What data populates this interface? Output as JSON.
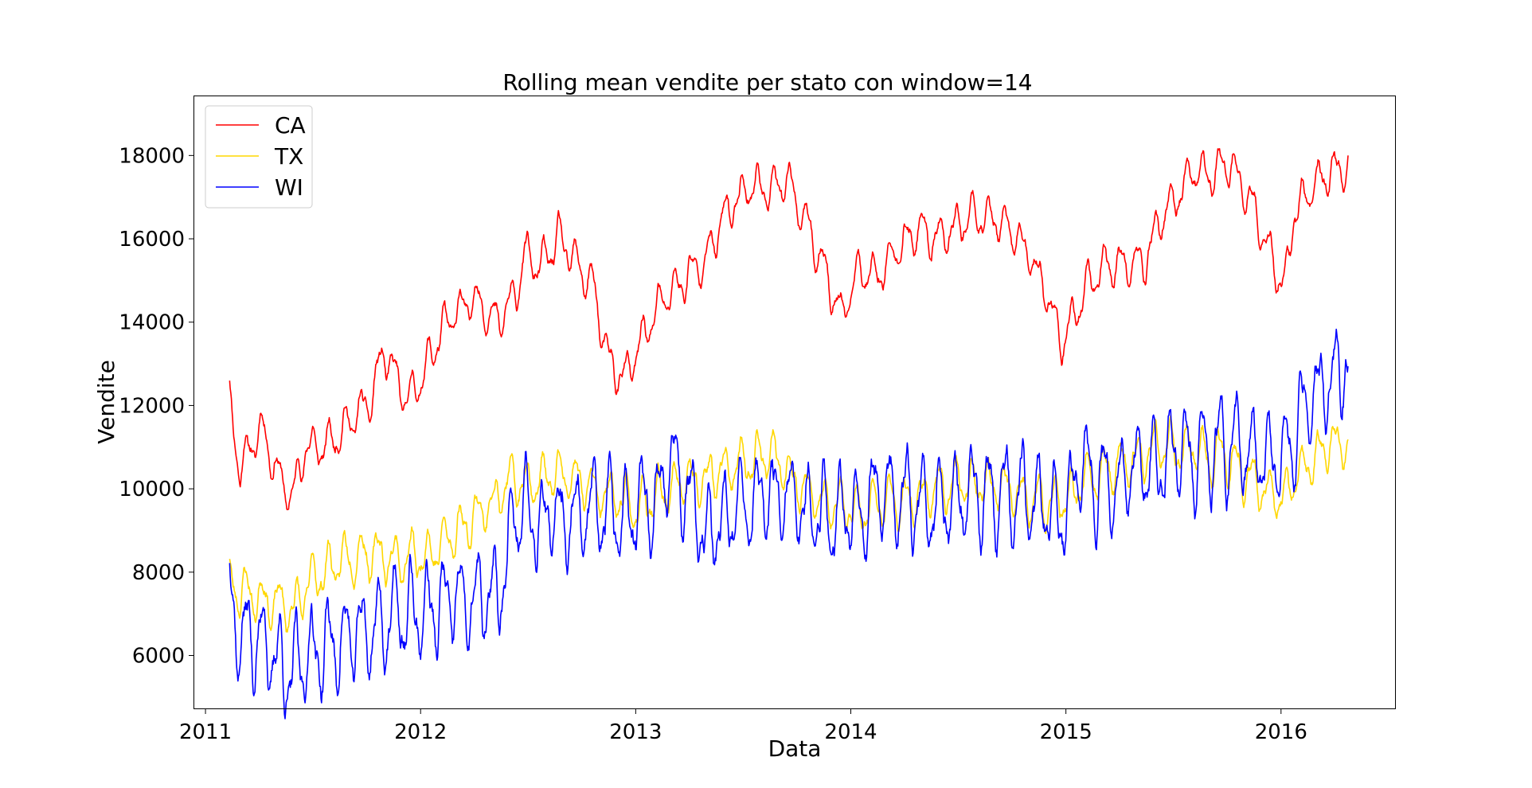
{
  "chart_data": {
    "type": "line",
    "title": "Rolling mean vendite per stato con window=14",
    "xlabel": "Data",
    "ylabel": "Vendite",
    "xlim": [
      "2010-12-13",
      "2016-07-13"
    ],
    "ylim": [
      4730,
      19420
    ],
    "x_ticks": [
      "2011",
      "2012",
      "2013",
      "2014",
      "2015",
      "2016"
    ],
    "y_ticks": [
      6000,
      8000,
      10000,
      12000,
      14000,
      16000,
      18000
    ],
    "grid": false,
    "legend_position": "top-left",
    "series": [
      {
        "name": "CA",
        "color": "#ff0000",
        "start_date": "2011-02-11",
        "end_date": "2016-04-24",
        "baseline": [
          [
            2011.11,
            12150
          ],
          [
            2011.16,
            10500
          ],
          [
            2011.21,
            11000
          ],
          [
            2011.26,
            11500
          ],
          [
            2011.31,
            10800
          ],
          [
            2011.36,
            10050
          ],
          [
            2011.41,
            9850
          ],
          [
            2011.46,
            11000
          ],
          [
            2011.56,
            11000
          ],
          [
            2011.66,
            11600
          ],
          [
            2011.76,
            12000
          ],
          [
            2011.83,
            13300
          ],
          [
            2011.93,
            12100
          ],
          [
            2012.0,
            12600
          ],
          [
            2012.08,
            13600
          ],
          [
            2012.16,
            14200
          ],
          [
            2012.26,
            14600
          ],
          [
            2012.36,
            14000
          ],
          [
            2012.44,
            14600
          ],
          [
            2012.48,
            15600
          ],
          [
            2012.56,
            15300
          ],
          [
            2012.64,
            16000
          ],
          [
            2012.72,
            15400
          ],
          [
            2012.8,
            14900
          ],
          [
            2012.88,
            12900
          ],
          [
            2012.96,
            12700
          ],
          [
            2013.04,
            13700
          ],
          [
            2013.12,
            14500
          ],
          [
            2013.22,
            15000
          ],
          [
            2013.32,
            15500
          ],
          [
            2013.42,
            16600
          ],
          [
            2013.52,
            17300
          ],
          [
            2013.62,
            17200
          ],
          [
            2013.72,
            17300
          ],
          [
            2013.8,
            16300
          ],
          [
            2013.88,
            15300
          ],
          [
            2013.96,
            14100
          ],
          [
            2014.04,
            15300
          ],
          [
            2014.12,
            15200
          ],
          [
            2014.2,
            15600
          ],
          [
            2014.3,
            16200
          ],
          [
            2014.4,
            16000
          ],
          [
            2014.48,
            16300
          ],
          [
            2014.58,
            16600
          ],
          [
            2014.66,
            16500
          ],
          [
            2014.76,
            16100
          ],
          [
            2014.84,
            15500
          ],
          [
            2014.92,
            14600
          ],
          [
            2014.98,
            13500
          ],
          [
            2015.04,
            14200
          ],
          [
            2015.1,
            14900
          ],
          [
            2015.18,
            15300
          ],
          [
            2015.26,
            15400
          ],
          [
            2015.36,
            15300
          ],
          [
            2015.44,
            16500
          ],
          [
            2015.52,
            17100
          ],
          [
            2015.6,
            17600
          ],
          [
            2015.68,
            17600
          ],
          [
            2015.78,
            17700
          ],
          [
            2015.86,
            16800
          ],
          [
            2015.92,
            16200
          ],
          [
            2015.98,
            15200
          ],
          [
            2016.02,
            14900
          ],
          [
            2016.06,
            16600
          ],
          [
            2016.12,
            17000
          ],
          [
            2016.18,
            17500
          ],
          [
            2016.26,
            17600
          ],
          [
            2016.32,
            17800
          ]
        ],
        "amplitude": 550,
        "seed": 11
      },
      {
        "name": "TX",
        "color": "#ffd700",
        "start_date": "2011-02-11",
        "end_date": "2016-04-24",
        "baseline": [
          [
            2011.11,
            7700
          ],
          [
            2011.21,
            7500
          ],
          [
            2011.31,
            7300
          ],
          [
            2011.41,
            7100
          ],
          [
            2011.51,
            7900
          ],
          [
            2011.61,
            8200
          ],
          [
            2011.71,
            8500
          ],
          [
            2011.81,
            8400
          ],
          [
            2011.91,
            8300
          ],
          [
            2012.01,
            8400
          ],
          [
            2012.11,
            8700
          ],
          [
            2012.21,
            9200
          ],
          [
            2012.31,
            9600
          ],
          [
            2012.41,
            10100
          ],
          [
            2012.51,
            10200
          ],
          [
            2012.61,
            10300
          ],
          [
            2012.71,
            10200
          ],
          [
            2012.81,
            10000
          ],
          [
            2012.91,
            9800
          ],
          [
            2013.01,
            9500
          ],
          [
            2013.11,
            9900
          ],
          [
            2013.21,
            10200
          ],
          [
            2013.31,
            10200
          ],
          [
            2013.41,
            10400
          ],
          [
            2013.51,
            10600
          ],
          [
            2013.61,
            10800
          ],
          [
            2013.71,
            10400
          ],
          [
            2013.81,
            9900
          ],
          [
            2013.91,
            9600
          ],
          [
            2014.01,
            9500
          ],
          [
            2014.11,
            9600
          ],
          [
            2014.21,
            9700
          ],
          [
            2014.31,
            9800
          ],
          [
            2014.41,
            10000
          ],
          [
            2014.51,
            10200
          ],
          [
            2014.61,
            10100
          ],
          [
            2014.71,
            10000
          ],
          [
            2014.81,
            9900
          ],
          [
            2014.91,
            9700
          ],
          [
            2015.01,
            9800
          ],
          [
            2015.11,
            10300
          ],
          [
            2015.21,
            10500
          ],
          [
            2015.31,
            10700
          ],
          [
            2015.41,
            10900
          ],
          [
            2015.51,
            11000
          ],
          [
            2015.61,
            10900
          ],
          [
            2015.71,
            10700
          ],
          [
            2015.81,
            10500
          ],
          [
            2015.91,
            10100
          ],
          [
            2016.01,
            9700
          ],
          [
            2016.11,
            10500
          ],
          [
            2016.21,
            11100
          ],
          [
            2016.32,
            11100
          ]
        ],
        "amplitude": 650,
        "seed": 23
      },
      {
        "name": "WI",
        "color": "#0000ff",
        "start_date": "2011-02-11",
        "end_date": "2016-04-24",
        "baseline": [
          [
            2011.11,
            7700
          ],
          [
            2011.16,
            6500
          ],
          [
            2011.26,
            6400
          ],
          [
            2011.36,
            5700
          ],
          [
            2011.41,
            5500
          ],
          [
            2011.46,
            6000
          ],
          [
            2011.56,
            6200
          ],
          [
            2011.66,
            6400
          ],
          [
            2011.76,
            6600
          ],
          [
            2011.86,
            6900
          ],
          [
            2011.96,
            7000
          ],
          [
            2012.06,
            7100
          ],
          [
            2012.16,
            7300
          ],
          [
            2012.26,
            7200
          ],
          [
            2012.36,
            7500
          ],
          [
            2012.42,
            9000
          ],
          [
            2012.48,
            9700
          ],
          [
            2012.58,
            9300
          ],
          [
            2012.68,
            9400
          ],
          [
            2012.78,
            9400
          ],
          [
            2012.88,
            9300
          ],
          [
            2012.98,
            9300
          ],
          [
            2013.08,
            9600
          ],
          [
            2013.16,
            10800
          ],
          [
            2013.26,
            9700
          ],
          [
            2013.32,
            8700
          ],
          [
            2013.42,
            9300
          ],
          [
            2013.52,
            9800
          ],
          [
            2013.62,
            9700
          ],
          [
            2013.72,
            9600
          ],
          [
            2013.82,
            9500
          ],
          [
            2013.92,
            9400
          ],
          [
            2014.02,
            9600
          ],
          [
            2014.12,
            9800
          ],
          [
            2014.22,
            9800
          ],
          [
            2014.32,
            9700
          ],
          [
            2014.42,
            9700
          ],
          [
            2014.52,
            9800
          ],
          [
            2014.62,
            9900
          ],
          [
            2014.72,
            9900
          ],
          [
            2014.82,
            9800
          ],
          [
            2014.92,
            9700
          ],
          [
            2015.02,
            9600
          ],
          [
            2015.06,
            10900
          ],
          [
            2015.12,
            10300
          ],
          [
            2015.22,
            10200
          ],
          [
            2015.32,
            10400
          ],
          [
            2015.42,
            10600
          ],
          [
            2015.52,
            10800
          ],
          [
            2015.62,
            10800
          ],
          [
            2015.72,
            11000
          ],
          [
            2015.82,
            11000
          ],
          [
            2015.92,
            10800
          ],
          [
            2016.02,
            10600
          ],
          [
            2016.08,
            11500
          ],
          [
            2016.14,
            12300
          ],
          [
            2016.22,
            12400
          ],
          [
            2016.3,
            13200
          ],
          [
            2016.32,
            13100
          ]
        ],
        "amplitude": 1250,
        "seed": 37
      }
    ]
  }
}
